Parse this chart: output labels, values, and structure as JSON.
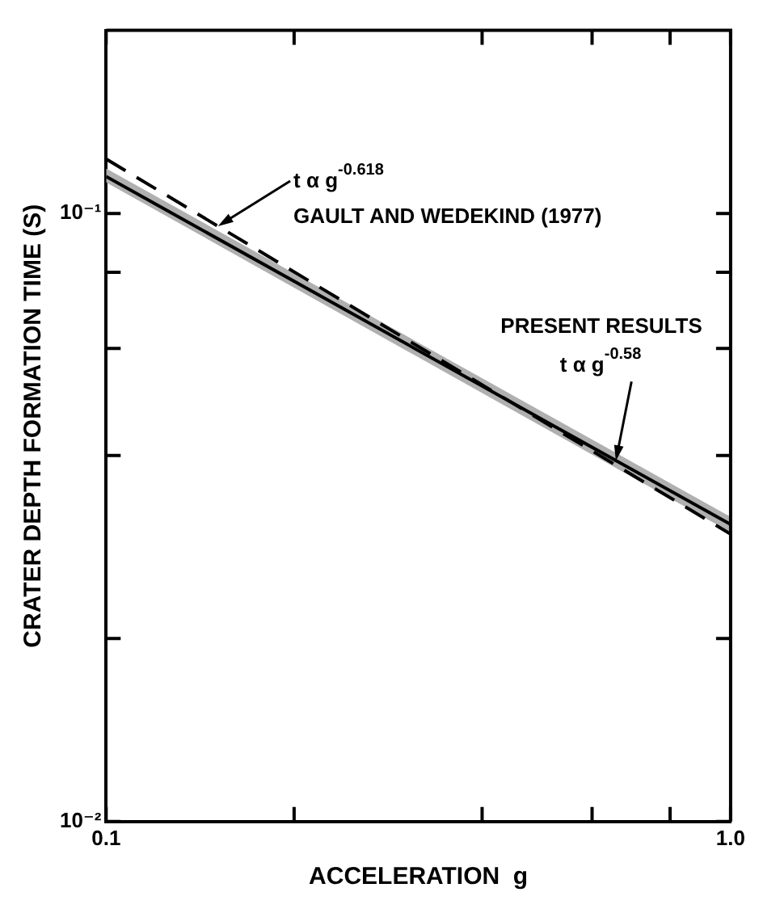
{
  "chart_data": {
    "type": "line",
    "xlabel": "ACCELERATION  g",
    "ylabel": "CRATER DEPTH FORMATION TIME (S)",
    "x": [
      0.1,
      1
    ],
    "series": [
      {
        "name": "PRESENT RESULTS",
        "color": "#000000",
        "values": [
          0.115,
          0.0308
        ],
        "lower": [
          0.1125,
          0.0299
        ],
        "upper": [
          0.1186,
          0.0317
        ],
        "line_style": "solid"
      },
      {
        "name": "GAULT AND WEDEKIND (1977)",
        "color": "#000000",
        "values": [
          0.1229,
          0.0297
        ],
        "line_style": "dashed"
      }
    ],
    "annotations": [
      {
        "text": "t α g$^{-0.618}$",
        "x": 0.151,
        "y": 0.0953
      },
      {
        "text": "t α g$^{-0.58}$",
        "x": 0.655,
        "y": 0.0392
      }
    ],
    "log": "xy",
    "grid": false,
    "legend": false,
    "marker": "none",
    "xlim": [
      0.1,
      1
    ],
    "xticks": [
      0.1,
      {
        "value": 0.2,
        "label": null
      },
      {
        "value": 0.4,
        "label": null
      },
      {
        "value": 0.6,
        "label": null
      },
      {
        "value": 0.8,
        "label": null
      },
      {
        "value": 1,
        "label": "1.0"
      }
    ],
    "ylim": [
      0.01,
      0.2
    ],
    "yticks": [
      {
        "value": 0.01,
        "label": "10⁻²"
      },
      {
        "value": 0.02,
        "label": null
      },
      {
        "value": 0.04,
        "label": null
      },
      {
        "value": 0.06,
        "label": null
      },
      {
        "value": 0.08,
        "label": null
      },
      {
        "value": 0.1,
        "label": "10⁻¹"
      }
    ]
  }
}
